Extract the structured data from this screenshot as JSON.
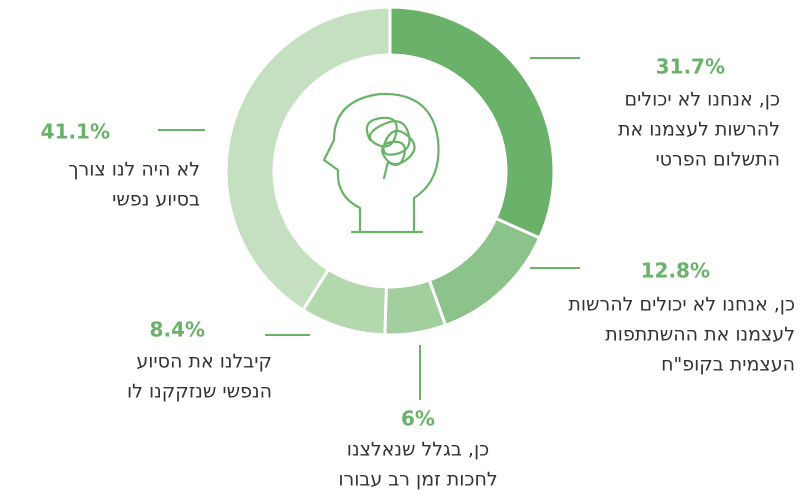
{
  "chart_data": {
    "type": "donut",
    "categories": [
      [
        "כן, אנחנו לא יכולים",
        "להרשות לעצמנו את",
        "התשלום הפרטי"
      ],
      [
        "כן, אנחנו לא יכולים להרשות",
        "לעצמנו את ההשתתפות",
        "העצמית בקופ\"ח"
      ],
      [
        "כן, בגלל שנאלצנו",
        "לחכות זמן רב עבורו"
      ],
      [
        "קיבלנו את הסיוע",
        "הנפשי שנזקקנו לו"
      ],
      [
        "לא היה לנו צורך",
        "בסיוע נפשי"
      ]
    ],
    "values": [
      31.7,
      12.8,
      6,
      8.4,
      41.1
    ],
    "value_labels": [
      "31.7%",
      "12.8%",
      "6%",
      "8.4%",
      "41.1%"
    ],
    "colors": [
      "#6ab26a",
      "#8cc38a",
      "#a2cf9e",
      "#b4d8ae",
      "#c5e0c0"
    ]
  }
}
